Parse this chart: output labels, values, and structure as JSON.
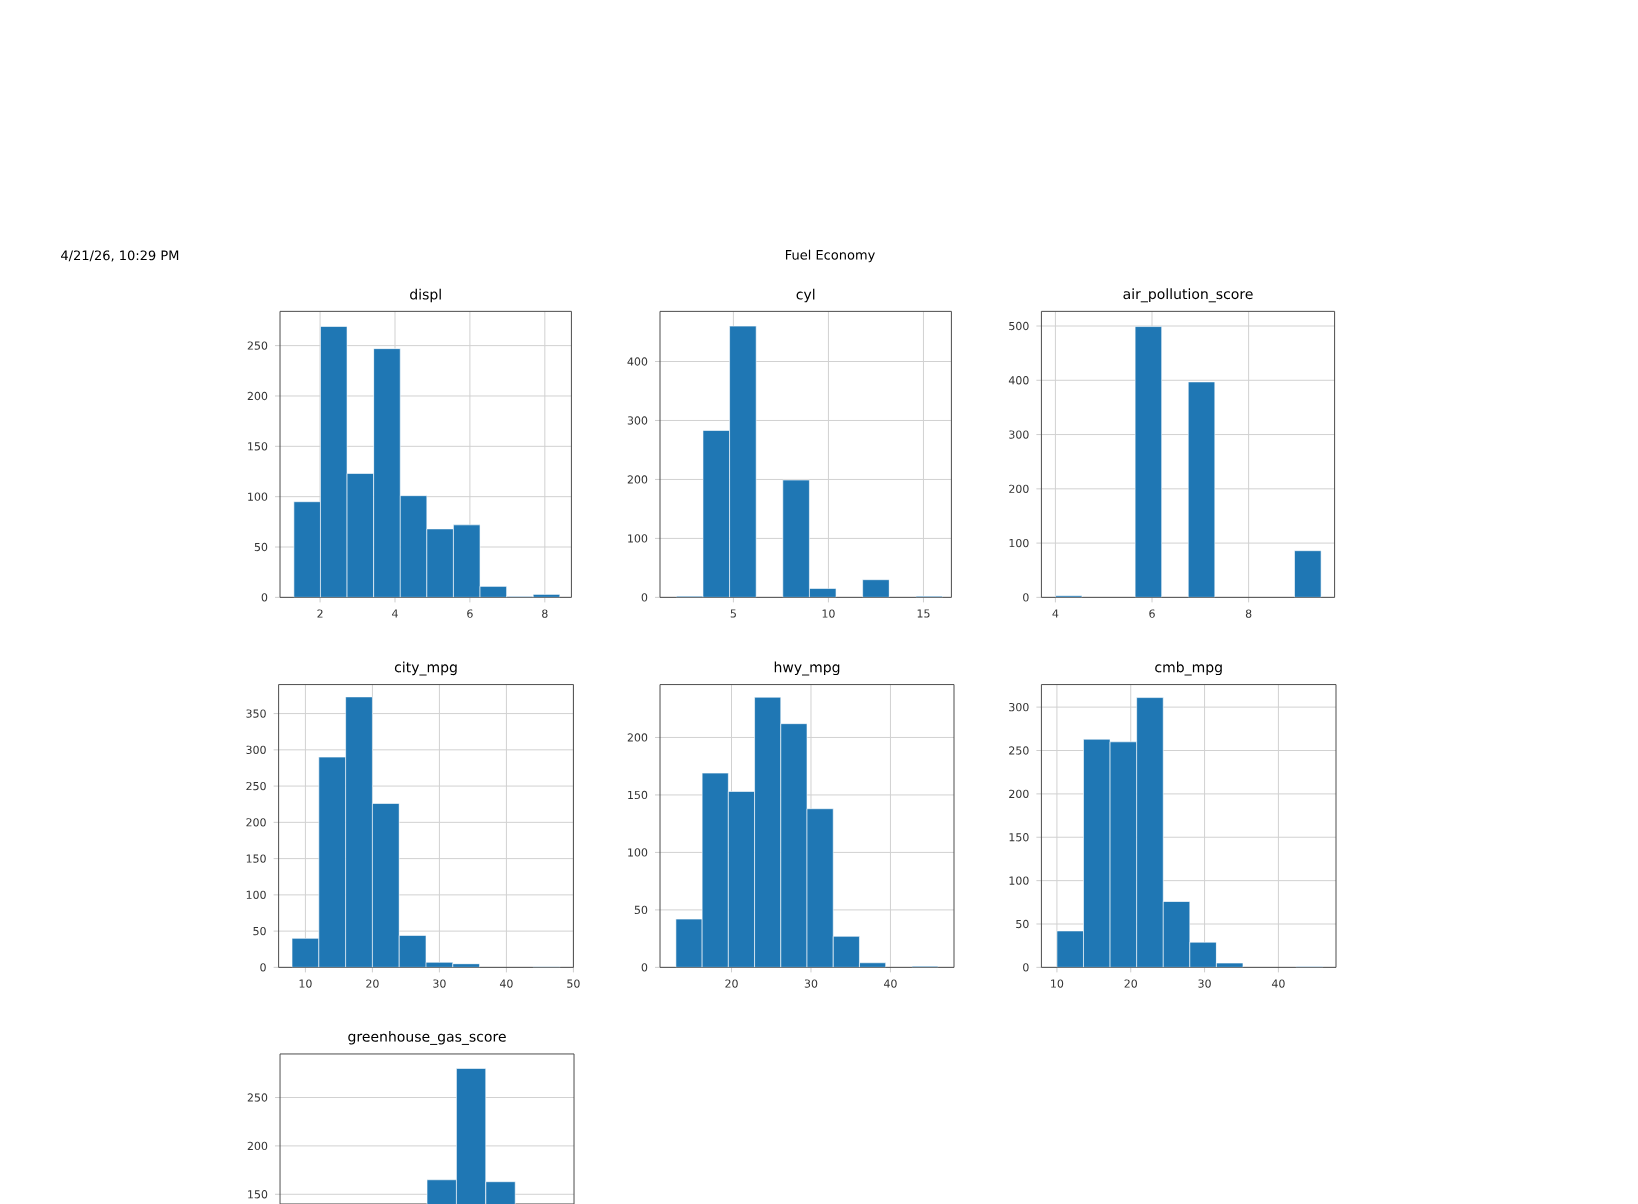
{
  "chart_data": [
    {
      "type": "histogram",
      "title": "displ",
      "annotations": [
        "4/21/26, 10:29 PM",
        "Fuel Economy"
      ],
      "color": "#1f77b4",
      "grid": true,
      "bins": [
        1.3,
        2.01,
        2.72,
        3.43,
        4.14,
        4.85,
        5.56,
        6.27,
        6.98,
        7.69,
        8.4
      ],
      "values": [
        95,
        269,
        123,
        247,
        101,
        68,
        72,
        11,
        1,
        3
      ],
      "xlim": [
        0.93,
        8.71
      ],
      "ylim": [
        0,
        284
      ],
      "xticks": [
        2,
        4,
        6,
        8
      ],
      "yticks": [
        0,
        50,
        100,
        150,
        200,
        250
      ]
    },
    {
      "type": "histogram",
      "title": "cyl",
      "color": "#1f77b4",
      "grid": true,
      "bins": [
        2,
        3.4,
        4.8,
        6.2,
        7.6,
        9,
        10.4,
        11.8,
        13.2,
        14.6,
        16
      ],
      "values": [
        2,
        283,
        460,
        0,
        199,
        15,
        0,
        30,
        0,
        2
      ],
      "xlim": [
        1.14,
        16.47
      ],
      "ylim": [
        0,
        485
      ],
      "xticks": [
        5,
        10,
        15
      ],
      "yticks": [
        0,
        100,
        200,
        300,
        400
      ]
    },
    {
      "type": "histogram",
      "title": "air_pollution_score",
      "color": "#1f77b4",
      "grid": true,
      "bins": [
        4,
        4.55,
        5.1,
        5.65,
        6.2,
        6.75,
        7.3,
        7.85,
        8.4,
        8.95,
        9.5
      ],
      "values": [
        3,
        0,
        0,
        499,
        0,
        397,
        0,
        0,
        0,
        86
      ],
      "xlim": [
        3.71,
        9.78
      ],
      "ylim": [
        0,
        527
      ],
      "xticks": [
        4,
        6,
        8
      ],
      "yticks": [
        0,
        100,
        200,
        300,
        400,
        500
      ]
    },
    {
      "type": "histogram",
      "title": "city_mpg",
      "color": "#1f77b4",
      "grid": true,
      "bins": [
        8,
        12,
        16,
        20,
        24,
        28,
        32,
        36,
        40,
        44,
        48
      ],
      "values": [
        40,
        290,
        373,
        226,
        44,
        7,
        5,
        0,
        0,
        1
      ],
      "xlim": [
        6,
        50
      ],
      "ylim": [
        0,
        390
      ],
      "xticks": [
        10,
        20,
        30,
        40,
        50
      ],
      "yticks": [
        0,
        50,
        100,
        150,
        200,
        250,
        300,
        350
      ]
    },
    {
      "type": "histogram",
      "title": "hwy_mpg",
      "color": "#1f77b4",
      "grid": true,
      "bins": [
        13,
        16.3,
        19.6,
        22.9,
        26.2,
        29.5,
        32.8,
        36.1,
        39.4,
        42.7,
        46
      ],
      "values": [
        42,
        169,
        153,
        235,
        212,
        138,
        27,
        4,
        0,
        1
      ],
      "xlim": [
        11,
        48
      ],
      "ylim": [
        0,
        246
      ],
      "xticks": [
        20,
        30,
        40
      ],
      "yticks": [
        0,
        50,
        100,
        150,
        200
      ]
    },
    {
      "type": "histogram",
      "title": "cmb_mpg",
      "color": "#1f77b4",
      "grid": true,
      "bins": [
        10,
        13.6,
        17.2,
        20.8,
        24.4,
        28,
        31.6,
        35.2,
        38.8,
        42.4,
        46
      ],
      "values": [
        42,
        263,
        260,
        311,
        76,
        29,
        5,
        0,
        0,
        1
      ],
      "xlim": [
        7.9,
        47.8
      ],
      "ylim": [
        0,
        326
      ],
      "xticks": [
        10,
        20,
        30,
        40
      ],
      "yticks": [
        0,
        50,
        100,
        150,
        200,
        250,
        300
      ]
    },
    {
      "type": "bar",
      "title": "greenhouse_gas_score",
      "color": "#1f77b4",
      "grid": "y",
      "categories": [
        null,
        null,
        null,
        null,
        null,
        null,
        null,
        null,
        null,
        null
      ],
      "values": [
        null,
        null,
        null,
        null,
        null,
        165,
        280,
        163,
        null,
        null
      ],
      "ylim": [
        140,
        295
      ],
      "yticks": [
        150,
        200,
        250
      ]
    }
  ]
}
